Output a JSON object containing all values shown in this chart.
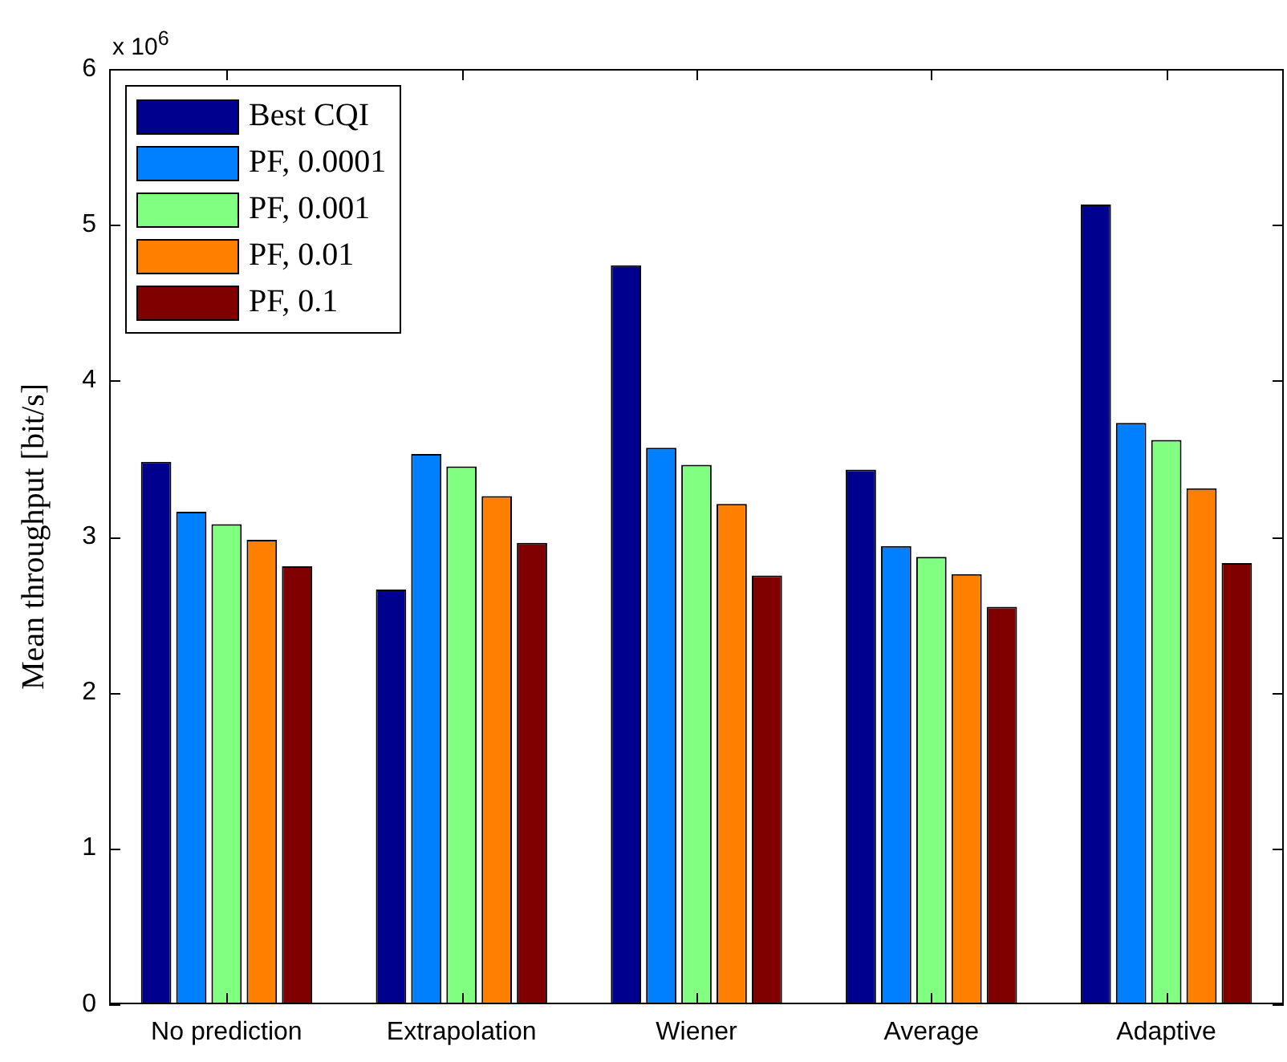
{
  "chart_data": {
    "type": "bar",
    "ylabel": "Mean throughput [bit/s]",
    "annotations": [
      "x 10$^{6}$"
    ],
    "categories": [
      "No prediction",
      "Extrapolation",
      "Wiener",
      "Average",
      "Adaptive"
    ],
    "series": [
      {
        "name": "Best CQI",
        "color": "#00008f",
        "values": [
          3.48,
          2.66,
          4.74,
          3.43,
          5.13
        ]
      },
      {
        "name": "PF, 0.0001",
        "color": "#0080ff",
        "values": [
          3.16,
          3.53,
          3.57,
          2.94,
          3.73
        ]
      },
      {
        "name": "PF, 0.001",
        "color": "#80ff80",
        "values": [
          3.08,
          3.45,
          3.46,
          2.87,
          3.62
        ]
      },
      {
        "name": "PF, 0.01",
        "color": "#ff8000",
        "values": [
          2.98,
          3.26,
          3.21,
          2.76,
          3.31
        ]
      },
      {
        "name": "PF, 0.1",
        "color": "#800000",
        "values": [
          2.81,
          2.96,
          2.75,
          2.55,
          2.83
        ]
      }
    ],
    "ylim": [
      0,
      6
    ],
    "yticks": [
      0,
      1,
      2,
      3,
      4,
      5,
      6
    ],
    "grid": false,
    "legend": "top left"
  }
}
